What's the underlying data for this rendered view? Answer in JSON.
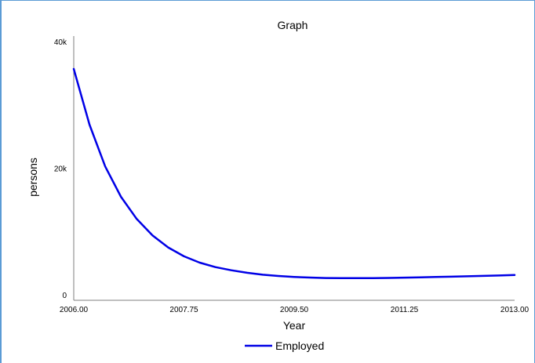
{
  "chart_data": {
    "type": "line",
    "title": "Graph",
    "xlabel": "Year",
    "ylabel": "persons",
    "xlim": [
      2006.0,
      2013.0
    ],
    "ylim": [
      0,
      40000
    ],
    "x_ticks": [
      2006.0,
      2007.75,
      2009.5,
      2011.25,
      2013.0
    ],
    "x_tick_labels": [
      "2006.00",
      "2007.75",
      "2009.50",
      "2011.25",
      "2013.00"
    ],
    "y_ticks": [
      0,
      20000,
      40000
    ],
    "y_tick_labels": [
      "0",
      "20k",
      "40k"
    ],
    "grid": false,
    "legend_placement": "bottom-center",
    "series": [
      {
        "name": "Employed",
        "color": "#0000e6",
        "x": [
          2006.0,
          2006.25,
          2006.5,
          2006.75,
          2007.0,
          2007.25,
          2007.5,
          2007.75,
          2008.0,
          2008.25,
          2008.5,
          2008.75,
          2009.0,
          2009.25,
          2009.5,
          2009.75,
          2010.0,
          2010.25,
          2010.5,
          2010.75,
          2011.0,
          2011.25,
          2011.5,
          2011.75,
          2012.0,
          2012.25,
          2012.5,
          2012.75,
          2013.0
        ],
        "values": [
          35800,
          27000,
          20400,
          15600,
          12100,
          9500,
          7600,
          6200,
          5200,
          4500,
          4000,
          3600,
          3300,
          3100,
          2950,
          2850,
          2780,
          2750,
          2750,
          2760,
          2790,
          2830,
          2880,
          2930,
          2990,
          3050,
          3110,
          3170,
          3240
        ]
      }
    ]
  }
}
